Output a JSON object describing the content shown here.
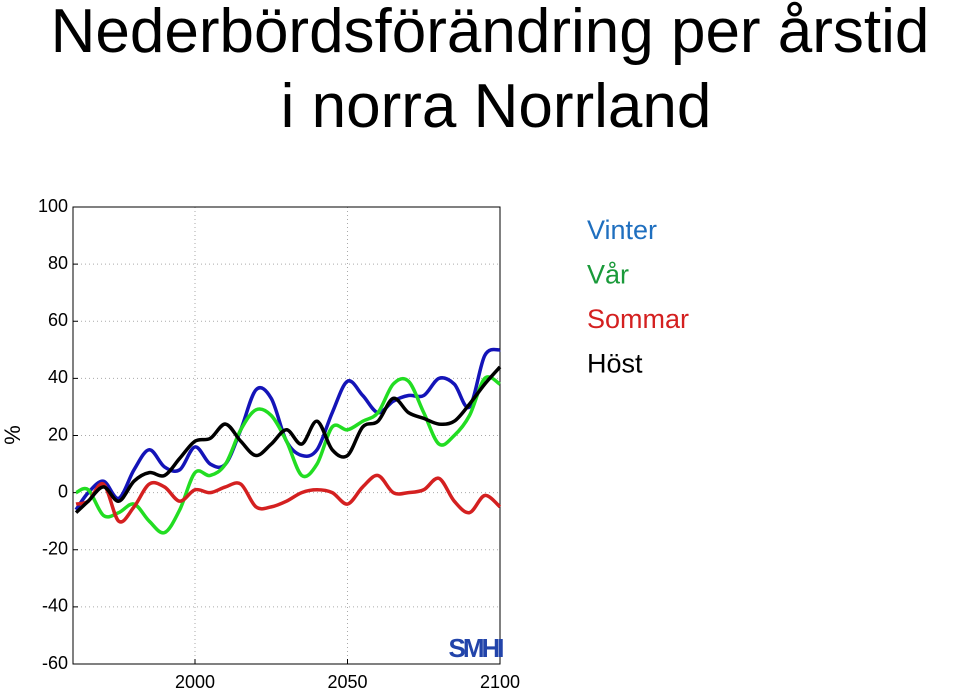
{
  "chart_data": {
    "type": "line",
    "title": [
      "Nederbördsförändring per årstid",
      "i norra Norrland"
    ],
    "ylabel": "%",
    "logo": "SMHI",
    "x": [
      1961,
      1965,
      1970,
      1975,
      1980,
      1985,
      1990,
      1995,
      2000,
      2005,
      2010,
      2015,
      2020,
      2025,
      2030,
      2035,
      2040,
      2045,
      2050,
      2055,
      2060,
      2065,
      2070,
      2075,
      2080,
      2085,
      2090,
      2095,
      2100
    ],
    "series": [
      {
        "name": "Vinter",
        "color": "#1414b8",
        "label_color": "#1f6fbf",
        "values": [
          -6,
          0,
          4,
          -2,
          8,
          15,
          9,
          8,
          16,
          10,
          10,
          22,
          36,
          33,
          18,
          13,
          15,
          28,
          39,
          34,
          28,
          32,
          34,
          34,
          40,
          38,
          30,
          48,
          50
        ]
      },
      {
        "name": "Vår",
        "color": "#22dd22",
        "label_color": "#1a9a3a",
        "values": [
          0,
          1,
          -8,
          -7,
          -4,
          -10,
          -14,
          -6,
          7,
          6,
          10,
          22,
          29,
          27,
          18,
          6,
          10,
          23,
          22,
          25,
          28,
          38,
          39,
          28,
          17,
          20,
          27,
          40,
          38
        ]
      },
      {
        "name": "Sommar",
        "color": "#d42020",
        "label_color": "#d42020",
        "values": [
          -4,
          -3,
          3,
          -10,
          -5,
          3,
          2,
          -3,
          1,
          0,
          2,
          3,
          -5,
          -5,
          -3,
          0,
          1,
          0,
          -4,
          2,
          6,
          0,
          0,
          1,
          5,
          -3,
          -7,
          -1,
          -5
        ]
      },
      {
        "name": "Höst",
        "color": "#000000",
        "label_color": "#000000",
        "values": [
          -7,
          -3,
          2,
          -3,
          4,
          7,
          6,
          12,
          18,
          19,
          24,
          18,
          13,
          17,
          22,
          17,
          25,
          15,
          13,
          23,
          25,
          33,
          28,
          26,
          24,
          25,
          31,
          38,
          44
        ]
      }
    ],
    "xlim": [
      1960,
      2100
    ],
    "xticks": [
      2000,
      2050,
      2100
    ],
    "ylim": [
      -60,
      100
    ],
    "yticks": [
      -60,
      -40,
      -20,
      0,
      20,
      40,
      60,
      80,
      100
    ],
    "grid": true
  }
}
